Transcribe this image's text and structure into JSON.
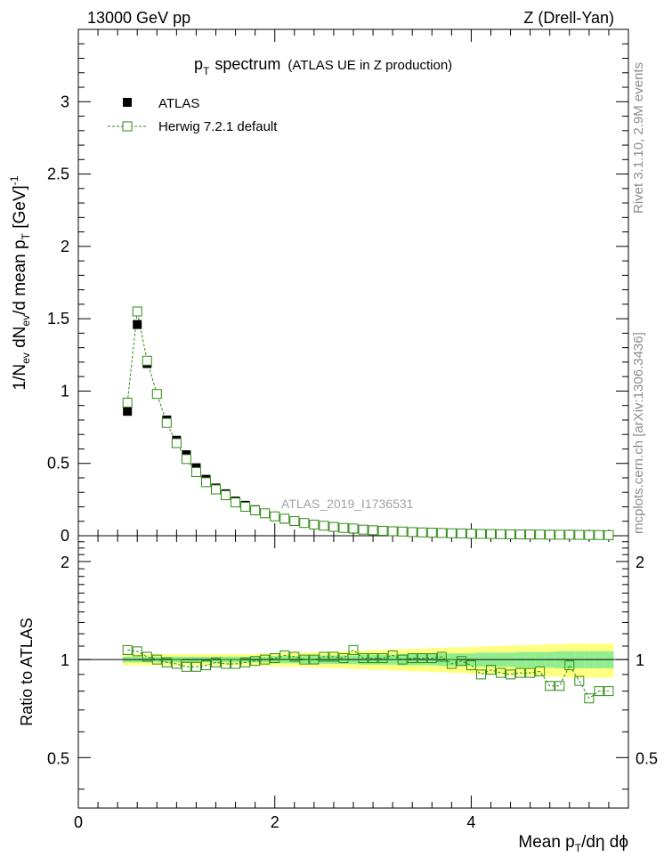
{
  "header": {
    "left": "13000 GeV pp",
    "right": "Z (Drell-Yan)"
  },
  "plot_title": {
    "main_p": "p",
    "main_sub": "T",
    "main_rest": "spectrum",
    "paren": "(ATLAS UE in Z production)"
  },
  "side_labels": {
    "rivet": "Rivet 3.1.10,  2.9M events",
    "mcplots": "mcplots.cern.ch [arXiv:1306.3436]"
  },
  "watermark": "ATLAS_2019_I1736531",
  "y_axis_main": {
    "label": "1/N_ev dN_ev/d mean p_T [GeV]^-1",
    "ticks": [
      "0",
      "0.5",
      "1",
      "1.5",
      "2",
      "2.5",
      "3"
    ]
  },
  "y_axis_ratio": {
    "label": "Ratio to ATLAS",
    "ticks": [
      "0.5",
      "1",
      "2"
    ]
  },
  "x_axis": {
    "label": "Mean p_T/dη dϕ",
    "ticks": [
      "0",
      "2",
      "4"
    ]
  },
  "colors": {
    "data": "#000000",
    "mc": "#2e8b14",
    "band_inner": "#90ee90",
    "band_outer": "#ffff80"
  },
  "chart_data": {
    "type": "scatter",
    "title": "p_T spectrum (ATLAS UE in Z production)",
    "xlabel": "Mean p_T/dη dϕ",
    "ylabel": "1/N_ev dN_ev/d mean p_T [GeV]^-1",
    "xlim": [
      0,
      5.6
    ],
    "ylim": [
      0,
      3.5
    ],
    "ratio_ylim": [
      0.35,
      2.4
    ],
    "ratio_ylabel": "Ratio to ATLAS",
    "x": [
      0.5,
      0.6,
      0.7,
      0.8,
      0.9,
      1.0,
      1.1,
      1.2,
      1.3,
      1.4,
      1.5,
      1.6,
      1.7,
      1.8,
      1.9,
      2.0,
      2.1,
      2.2,
      2.3,
      2.4,
      2.5,
      2.6,
      2.7,
      2.8,
      2.9,
      3.0,
      3.1,
      3.2,
      3.3,
      3.4,
      3.5,
      3.6,
      3.7,
      3.8,
      3.9,
      4.0,
      4.1,
      4.2,
      4.3,
      4.4,
      4.5,
      4.6,
      4.7,
      4.8,
      4.9,
      5.0,
      5.1,
      5.2,
      5.3,
      5.4
    ],
    "series": [
      {
        "name": "ATLAS",
        "marker": "filled-square",
        "values": [
          0.86,
          1.46,
          1.19,
          0.98,
          0.8,
          0.66,
          0.56,
          0.47,
          0.39,
          0.33,
          0.29,
          0.24,
          0.21,
          0.18,
          0.155,
          0.133,
          0.115,
          0.1,
          0.088,
          0.077,
          0.068,
          0.06,
          0.053,
          0.047,
          0.042,
          0.038,
          0.034,
          0.031,
          0.028,
          0.025,
          0.023,
          0.021,
          0.019,
          0.017,
          0.016,
          0.015,
          0.014,
          0.013,
          0.012,
          0.011,
          0.01,
          0.0095,
          0.009,
          0.0085,
          0.008,
          0.0075,
          0.007,
          0.0065,
          0.006,
          0.0055
        ]
      },
      {
        "name": "Herwig 7.2.1 default",
        "marker": "open-square",
        "values": [
          0.92,
          1.55,
          1.21,
          0.98,
          0.78,
          0.64,
          0.53,
          0.44,
          0.37,
          0.32,
          0.28,
          0.23,
          0.2,
          0.175,
          0.155,
          0.134,
          0.118,
          0.102,
          0.088,
          0.077,
          0.069,
          0.061,
          0.054,
          0.05,
          0.042,
          0.038,
          0.034,
          0.031,
          0.029,
          0.025,
          0.023,
          0.021,
          0.019,
          0.017,
          0.016,
          0.014,
          0.0126,
          0.0121,
          0.0109,
          0.0099,
          0.009,
          0.0086,
          0.0083,
          0.007,
          0.0066,
          0.0072,
          0.006,
          0.005,
          0.0049,
          0.0044
        ],
        "ratio": [
          1.07,
          1.06,
          1.02,
          1.0,
          0.98,
          0.97,
          0.95,
          0.95,
          0.96,
          0.98,
          0.97,
          0.97,
          0.98,
          0.99,
          1.0,
          1.01,
          1.03,
          1.02,
          1.0,
          1.0,
          1.02,
          1.02,
          1.01,
          1.07,
          1.01,
          1.01,
          1.01,
          1.03,
          1.0,
          1.01,
          1.01,
          1.01,
          1.02,
          0.97,
          0.99,
          0.96,
          0.9,
          0.93,
          0.91,
          0.9,
          0.91,
          0.91,
          0.92,
          0.83,
          0.83,
          0.96,
          0.86,
          0.76,
          0.8,
          0.8
        ]
      }
    ],
    "ratio_band": {
      "inner": [
        0.02,
        0.02,
        0.02,
        0.02,
        0.02,
        0.02,
        0.02,
        0.02,
        0.02,
        0.02,
        0.02,
        0.02,
        0.02,
        0.02,
        0.02,
        0.025,
        0.025,
        0.025,
        0.025,
        0.03,
        0.03,
        0.03,
        0.03,
        0.03,
        0.035,
        0.035,
        0.035,
        0.035,
        0.04,
        0.04,
        0.04,
        0.04,
        0.045,
        0.045,
        0.045,
        0.045,
        0.05,
        0.05,
        0.05,
        0.05,
        0.055,
        0.055,
        0.055,
        0.055,
        0.06,
        0.06,
        0.06,
        0.06,
        0.06,
        0.06
      ],
      "outer": [
        0.04,
        0.04,
        0.04,
        0.04,
        0.04,
        0.04,
        0.04,
        0.04,
        0.04,
        0.04,
        0.04,
        0.04,
        0.04,
        0.04,
        0.045,
        0.045,
        0.05,
        0.05,
        0.05,
        0.055,
        0.055,
        0.06,
        0.06,
        0.065,
        0.065,
        0.07,
        0.07,
        0.075,
        0.075,
        0.08,
        0.08,
        0.085,
        0.085,
        0.09,
        0.09,
        0.095,
        0.095,
        0.1,
        0.1,
        0.105,
        0.105,
        0.11,
        0.11,
        0.115,
        0.115,
        0.12,
        0.12,
        0.12,
        0.12,
        0.12
      ]
    },
    "legend": [
      "ATLAS",
      "Herwig 7.2.1 default"
    ],
    "legend_position": "top-left"
  }
}
